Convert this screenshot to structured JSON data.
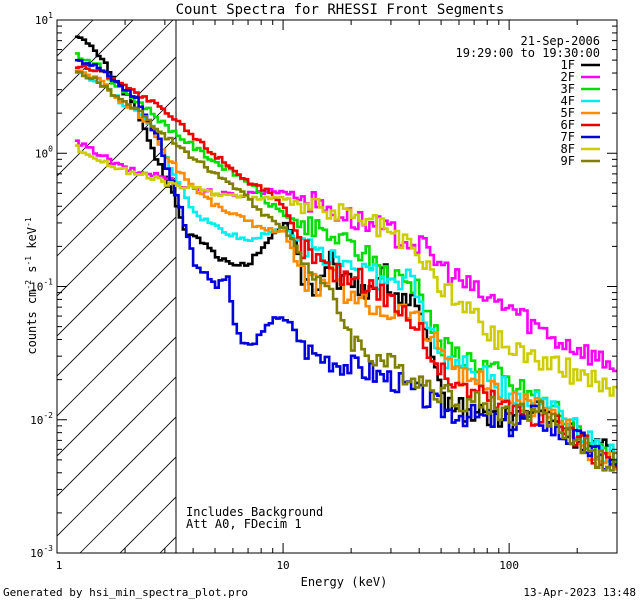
{
  "title": "Count Spectra for RHESSI Front Segments",
  "date": "21-Sep-2006",
  "time_range": "19:29:00 to 19:30:00",
  "xlabel": "Energy (keV)",
  "ylabel_base": "counts cm",
  "ylabel_exp1": "-2",
  "ylabel_mid": " s",
  "ylabel_exp2": "-1",
  "ylabel_end": " keV",
  "ylabel_exp3": "-1",
  "annotation_1": "Includes Background",
  "annotation_2": "Att A0, FDecim 1",
  "footer_left": "Generated by hsi_min_spectra_plot.pro",
  "footer_right": "13-Apr-2023 13:48",
  "chart_data": {
    "type": "line",
    "x_scale": "log",
    "y_scale": "log",
    "xlim": [
      1,
      300
    ],
    "ylim": [
      0.001,
      10
    ],
    "x_ticks": [
      {
        "value": 10,
        "label": "10"
      },
      {
        "value": 100,
        "label": "100"
      }
    ],
    "y_ticks": [
      {
        "value": 10,
        "base": "10",
        "exp": "1"
      },
      {
        "value": 1,
        "base": "10",
        "exp": "0"
      },
      {
        "value": 0.1,
        "base": "10",
        "exp": "-1"
      },
      {
        "value": 0.01,
        "base": "10",
        "exp": "-2"
      },
      {
        "value": 0.001,
        "base": "10",
        "exp": "-3"
      }
    ],
    "hatched_region_max_energy": 3,
    "series": [
      {
        "name": "1F",
        "color": "#000000",
        "points": [
          [
            1.2,
            7.8
          ],
          [
            1.5,
            5.5
          ],
          [
            1.8,
            3.5
          ],
          [
            2.2,
            2.2
          ],
          [
            2.5,
            1.2
          ],
          [
            2.8,
            0.8
          ],
          [
            3.2,
            0.5
          ],
          [
            3.6,
            0.26
          ],
          [
            4.3,
            0.22
          ],
          [
            5,
            0.17
          ],
          [
            6,
            0.14
          ],
          [
            7,
            0.15
          ],
          [
            8,
            0.2
          ],
          [
            10,
            0.3
          ],
          [
            11,
            0.25
          ],
          [
            12,
            0.12
          ],
          [
            14,
            0.09
          ],
          [
            16,
            0.15
          ],
          [
            18,
            0.1
          ],
          [
            20,
            0.12
          ],
          [
            23,
            0.09
          ],
          [
            27,
            0.14
          ],
          [
            30,
            0.09
          ],
          [
            35,
            0.08
          ],
          [
            40,
            0.06
          ],
          [
            45,
            0.025
          ],
          [
            50,
            0.015
          ],
          [
            60,
            0.012
          ],
          [
            80,
            0.011
          ],
          [
            100,
            0.01
          ],
          [
            130,
            0.012
          ],
          [
            160,
            0.01
          ],
          [
            200,
            0.007
          ],
          [
            250,
            0.006
          ],
          [
            300,
            0.005
          ]
        ]
      },
      {
        "name": "2F",
        "color": "#ff00ff",
        "points": [
          [
            1.2,
            1.2
          ],
          [
            1.5,
            1.0
          ],
          [
            1.8,
            0.82
          ],
          [
            2.2,
            0.72
          ],
          [
            2.6,
            0.7
          ],
          [
            3,
            0.65
          ],
          [
            3.5,
            0.58
          ],
          [
            4,
            0.55
          ],
          [
            5,
            0.5
          ],
          [
            6,
            0.48
          ],
          [
            7,
            0.5
          ],
          [
            8,
            0.52
          ],
          [
            10,
            0.52
          ],
          [
            12,
            0.45
          ],
          [
            15,
            0.4
          ],
          [
            20,
            0.32
          ],
          [
            25,
            0.28
          ],
          [
            30,
            0.25
          ],
          [
            40,
            0.2
          ],
          [
            50,
            0.14
          ],
          [
            60,
            0.11
          ],
          [
            70,
            0.09
          ],
          [
            80,
            0.08
          ],
          [
            100,
            0.07
          ],
          [
            130,
            0.05
          ],
          [
            160,
            0.04
          ],
          [
            200,
            0.035
          ],
          [
            250,
            0.028
          ],
          [
            300,
            0.026
          ]
        ]
      },
      {
        "name": "3F",
        "color": "#00dd00",
        "points": [
          [
            1.2,
            5.5
          ],
          [
            1.5,
            4.5
          ],
          [
            1.8,
            3.2
          ],
          [
            2.2,
            2.5
          ],
          [
            2.6,
            2.0
          ],
          [
            3,
            1.6
          ],
          [
            3.5,
            1.3
          ],
          [
            4,
            1.1
          ],
          [
            5,
            0.85
          ],
          [
            6,
            0.7
          ],
          [
            7,
            0.6
          ],
          [
            8,
            0.45
          ],
          [
            10,
            0.35
          ],
          [
            12,
            0.28
          ],
          [
            15,
            0.25
          ],
          [
            20,
            0.2
          ],
          [
            25,
            0.15
          ],
          [
            30,
            0.12
          ],
          [
            40,
            0.1
          ],
          [
            45,
            0.05
          ],
          [
            50,
            0.035
          ],
          [
            60,
            0.03
          ],
          [
            80,
            0.025
          ],
          [
            100,
            0.018
          ],
          [
            130,
            0.015
          ],
          [
            160,
            0.012
          ],
          [
            200,
            0.008
          ],
          [
            250,
            0.006
          ],
          [
            300,
            0.005
          ]
        ]
      },
      {
        "name": "4F",
        "color": "#00eeee",
        "points": [
          [
            1.2,
            4.0
          ],
          [
            1.5,
            3.5
          ],
          [
            1.8,
            2.6
          ],
          [
            2.2,
            2.0
          ],
          [
            2.6,
            1.6
          ],
          [
            3,
            0.9
          ],
          [
            3.5,
            0.55
          ],
          [
            4,
            0.35
          ],
          [
            5,
            0.28
          ],
          [
            6,
            0.24
          ],
          [
            7,
            0.22
          ],
          [
            8,
            0.25
          ],
          [
            10,
            0.28
          ],
          [
            12,
            0.2
          ],
          [
            15,
            0.18
          ],
          [
            20,
            0.15
          ],
          [
            25,
            0.12
          ],
          [
            30,
            0.1
          ],
          [
            35,
            0.12
          ],
          [
            40,
            0.08
          ],
          [
            45,
            0.04
          ],
          [
            50,
            0.03
          ],
          [
            60,
            0.025
          ],
          [
            80,
            0.02
          ],
          [
            100,
            0.016
          ],
          [
            130,
            0.014
          ],
          [
            160,
            0.013
          ],
          [
            200,
            0.009
          ],
          [
            250,
            0.006
          ],
          [
            300,
            0.005
          ]
        ]
      },
      {
        "name": "5F",
        "color": "#ff8c00",
        "points": [
          [
            1.2,
            4.2
          ],
          [
            1.5,
            3.6
          ],
          [
            1.8,
            2.6
          ],
          [
            2.2,
            2.1
          ],
          [
            2.6,
            1.5
          ],
          [
            3,
            0.95
          ],
          [
            3.5,
            0.7
          ],
          [
            4,
            0.55
          ],
          [
            5,
            0.4
          ],
          [
            6,
            0.35
          ],
          [
            7,
            0.3
          ],
          [
            8,
            0.28
          ],
          [
            10,
            0.25
          ],
          [
            12,
            0.12
          ],
          [
            14,
            0.1
          ],
          [
            16,
            0.12
          ],
          [
            20,
            0.08
          ],
          [
            25,
            0.07
          ],
          [
            30,
            0.065
          ],
          [
            35,
            0.07
          ],
          [
            40,
            0.05
          ],
          [
            45,
            0.04
          ],
          [
            50,
            0.035
          ],
          [
            60,
            0.022
          ],
          [
            80,
            0.018
          ],
          [
            100,
            0.014
          ],
          [
            130,
            0.012
          ],
          [
            160,
            0.011
          ],
          [
            200,
            0.007
          ],
          [
            250,
            0.005
          ],
          [
            300,
            0.004
          ]
        ]
      },
      {
        "name": "6F",
        "color": "#ee0000",
        "points": [
          [
            1.2,
            4.5
          ],
          [
            1.5,
            4.2
          ],
          [
            1.8,
            3.6
          ],
          [
            2.2,
            2.8
          ],
          [
            2.6,
            2.4
          ],
          [
            3,
            2.0
          ],
          [
            3.5,
            1.6
          ],
          [
            4,
            1.3
          ],
          [
            5,
            0.95
          ],
          [
            6,
            0.75
          ],
          [
            7,
            0.6
          ],
          [
            8,
            0.55
          ],
          [
            10,
            0.38
          ],
          [
            12,
            0.2
          ],
          [
            14,
            0.16
          ],
          [
            16,
            0.13
          ],
          [
            20,
            0.12
          ],
          [
            25,
            0.1
          ],
          [
            30,
            0.08
          ],
          [
            35,
            0.06
          ],
          [
            40,
            0.045
          ],
          [
            45,
            0.03
          ],
          [
            50,
            0.022
          ],
          [
            60,
            0.018
          ],
          [
            80,
            0.015
          ],
          [
            100,
            0.012
          ],
          [
            130,
            0.011
          ],
          [
            160,
            0.01
          ],
          [
            200,
            0.007
          ],
          [
            250,
            0.005
          ],
          [
            300,
            0.004
          ]
        ]
      },
      {
        "name": "7F",
        "color": "#0000dd",
        "points": [
          [
            1.2,
            5.2
          ],
          [
            1.5,
            4.4
          ],
          [
            1.8,
            3.4
          ],
          [
            2.2,
            2.6
          ],
          [
            2.5,
            1.7
          ],
          [
            2.8,
            1.3
          ],
          [
            3,
            0.75
          ],
          [
            3.3,
            0.5
          ],
          [
            3.6,
            0.3
          ],
          [
            4,
            0.15
          ],
          [
            5,
            0.1
          ],
          [
            5.6,
            0.12
          ],
          [
            6,
            0.05
          ],
          [
            6.5,
            0.038
          ],
          [
            7,
            0.036
          ],
          [
            8,
            0.045
          ],
          [
            9,
            0.06
          ],
          [
            10,
            0.055
          ],
          [
            11,
            0.05
          ],
          [
            12,
            0.035
          ],
          [
            14,
            0.03
          ],
          [
            16,
            0.028
          ],
          [
            20,
            0.025
          ],
          [
            25,
            0.022
          ],
          [
            30,
            0.02
          ],
          [
            40,
            0.015
          ],
          [
            50,
            0.012
          ],
          [
            60,
            0.011
          ],
          [
            80,
            0.01
          ],
          [
            100,
            0.009
          ],
          [
            130,
            0.011
          ],
          [
            160,
            0.008
          ],
          [
            200,
            0.007
          ],
          [
            250,
            0.005
          ],
          [
            300,
            0.0045
          ]
        ]
      },
      {
        "name": "8F",
        "color": "#cccc00",
        "points": [
          [
            1.2,
            1.1
          ],
          [
            1.5,
            0.9
          ],
          [
            1.8,
            0.78
          ],
          [
            2.2,
            0.7
          ],
          [
            2.6,
            0.65
          ],
          [
            3,
            0.6
          ],
          [
            3.5,
            0.56
          ],
          [
            4,
            0.54
          ],
          [
            5,
            0.5
          ],
          [
            6,
            0.48
          ],
          [
            7,
            0.47
          ],
          [
            8,
            0.46
          ],
          [
            10,
            0.45
          ],
          [
            12,
            0.4
          ],
          [
            15,
            0.38
          ],
          [
            20,
            0.33
          ],
          [
            25,
            0.29
          ],
          [
            30,
            0.25
          ],
          [
            40,
            0.16
          ],
          [
            50,
            0.1
          ],
          [
            60,
            0.075
          ],
          [
            70,
            0.06
          ],
          [
            80,
            0.045
          ],
          [
            100,
            0.035
          ],
          [
            130,
            0.03
          ],
          [
            160,
            0.025
          ],
          [
            200,
            0.022
          ],
          [
            250,
            0.02
          ],
          [
            300,
            0.014
          ]
        ]
      },
      {
        "name": "9F",
        "color": "#808000",
        "points": [
          [
            1.2,
            4.0
          ],
          [
            1.5,
            3.5
          ],
          [
            1.8,
            2.6
          ],
          [
            2.2,
            2.2
          ],
          [
            2.6,
            1.6
          ],
          [
            3,
            1.3
          ],
          [
            3.5,
            1.1
          ],
          [
            4,
            0.9
          ],
          [
            5,
            0.7
          ],
          [
            6,
            0.55
          ],
          [
            7,
            0.45
          ],
          [
            8,
            0.35
          ],
          [
            10,
            0.28
          ],
          [
            12,
            0.16
          ],
          [
            14,
            0.12
          ],
          [
            16,
            0.08
          ],
          [
            18,
            0.06
          ],
          [
            20,
            0.04
          ],
          [
            23,
            0.032
          ],
          [
            27,
            0.028
          ],
          [
            30,
            0.025
          ],
          [
            40,
            0.02
          ],
          [
            50,
            0.016
          ],
          [
            60,
            0.014
          ],
          [
            80,
            0.013
          ],
          [
            100,
            0.011
          ],
          [
            130,
            0.012
          ],
          [
            160,
            0.009
          ],
          [
            200,
            0.007
          ],
          [
            250,
            0.005
          ],
          [
            300,
            0.0045
          ]
        ]
      }
    ]
  }
}
